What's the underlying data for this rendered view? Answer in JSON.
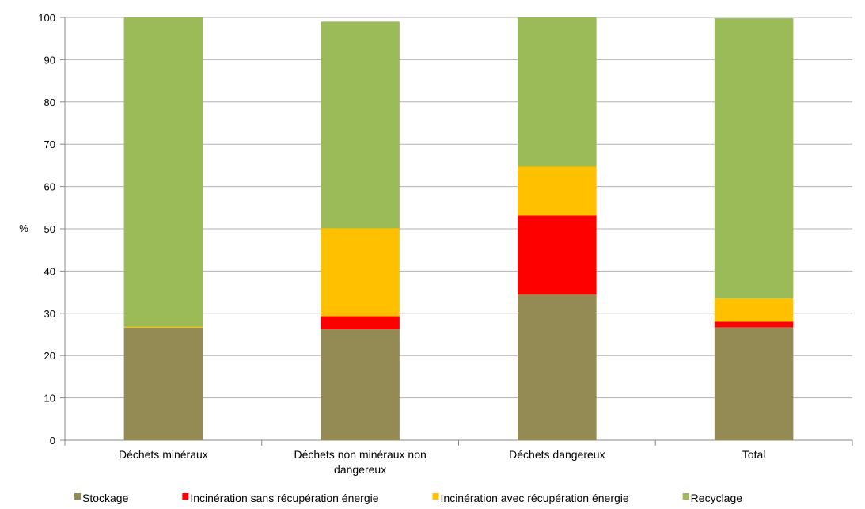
{
  "chart_data": {
    "type": "bar",
    "stacked": true,
    "ylabel": "%",
    "ylim": [
      0,
      100
    ],
    "yticks": [
      0,
      10,
      20,
      30,
      40,
      50,
      60,
      70,
      80,
      90,
      100
    ],
    "categories": [
      "Déchets minéraux",
      "Déchets non minéraux non dangereux",
      "Déchets dangereux",
      "Total"
    ],
    "series": [
      {
        "name": "Stockage",
        "color": "#948A54",
        "values": [
          26.6,
          26.2,
          34.4,
          26.7
        ]
      },
      {
        "name": "Incinération sans récupération énergie",
        "color": "#FF0000",
        "values": [
          0,
          3.1,
          18.7,
          1.3
        ]
      },
      {
        "name": "Incinération avec récupération énergie",
        "color": "#FFC000",
        "values": [
          0.2,
          20.8,
          11.6,
          5.5
        ]
      },
      {
        "name": "Recyclage",
        "color": "#9BBB59",
        "values": [
          73.2,
          48.9,
          35.3,
          66.3
        ]
      }
    ],
    "legend_position": "bottom",
    "grid": true
  }
}
